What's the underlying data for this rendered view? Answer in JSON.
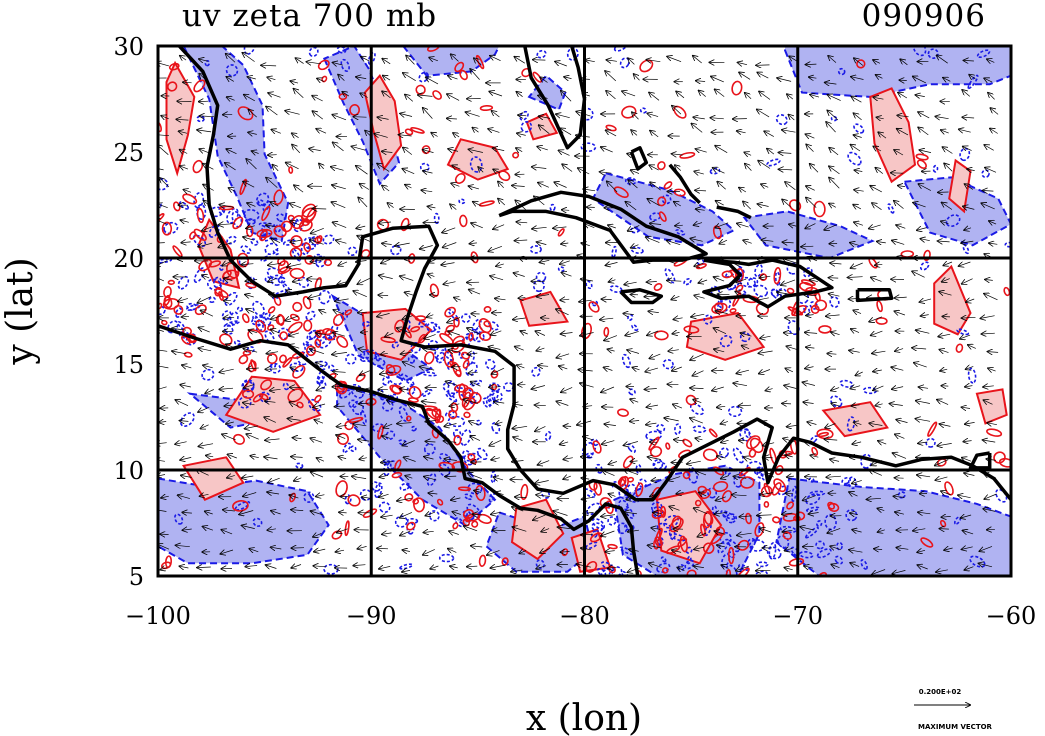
{
  "chart_data": {
    "type": "contour",
    "title": "uv zeta 700 mb",
    "date_label": "090906",
    "xlabel": "x (lon)",
    "ylabel": "y (lat)",
    "xlim": [
      -100,
      -60
    ],
    "ylim": [
      5,
      30
    ],
    "x_ticks": [
      {
        "value": -100,
        "label": "−100"
      },
      {
        "value": -90,
        "label": "−90"
      },
      {
        "value": -80,
        "label": "−80"
      },
      {
        "value": -70,
        "label": "−70"
      },
      {
        "value": -60,
        "label": "−60"
      }
    ],
    "y_ticks": [
      {
        "value": 5,
        "label": "5"
      },
      {
        "value": 10,
        "label": "10"
      },
      {
        "value": 15,
        "label": "15"
      },
      {
        "value": 20,
        "label": "20"
      },
      {
        "value": 25,
        "label": "25"
      },
      {
        "value": 30,
        "label": "30"
      }
    ],
    "grid_lon": [
      -90,
      -80,
      -70
    ],
    "grid_lat": [
      10,
      20
    ],
    "grid": true,
    "colors": {
      "positive_fill": "#f7c6c6",
      "positive_line": "#e8141b",
      "negative_fill": "#b0b3f2",
      "negative_line": "#1a1ae6",
      "coast": "#000000",
      "vector": "#000000"
    },
    "vector_legend": {
      "magnitude_label": "0.200E+02",
      "caption": "MAXIMUM VECTOR"
    },
    "coastlines": [
      [
        [
          -99,
          30
        ],
        [
          -97.9,
          28.8
        ],
        [
          -97.2,
          27.2
        ],
        [
          -97.4,
          25.8
        ],
        [
          -97.7,
          24.3
        ],
        [
          -97.6,
          22.5
        ],
        [
          -97.2,
          21.2
        ],
        [
          -96.6,
          19.9
        ],
        [
          -95.6,
          18.9
        ],
        [
          -94.5,
          18.2
        ],
        [
          -93.2,
          18.4
        ],
        [
          -92.2,
          18.6
        ],
        [
          -91.2,
          18.7
        ],
        [
          -90.6,
          19.7
        ],
        [
          -90.4,
          21.0
        ],
        [
          -89.0,
          21.4
        ],
        [
          -87.3,
          21.5
        ],
        [
          -86.9,
          20.6
        ],
        [
          -87.5,
          19.5
        ],
        [
          -87.9,
          18.4
        ],
        [
          -88.3,
          17.2
        ],
        [
          -88.6,
          16.1
        ],
        [
          -87.5,
          15.8
        ],
        [
          -85.8,
          15.9
        ],
        [
          -84.2,
          15.6
        ],
        [
          -83.3,
          14.9
        ],
        [
          -83.3,
          13.1
        ],
        [
          -83.6,
          11.9
        ],
        [
          -83.6,
          11.0
        ],
        [
          -83.0,
          10.0
        ],
        [
          -82.2,
          9.1
        ],
        [
          -81.0,
          8.9
        ],
        [
          -79.6,
          9.5
        ],
        [
          -78.6,
          9.3
        ],
        [
          -77.6,
          8.6
        ],
        [
          -76.8,
          8.6
        ],
        [
          -76.2,
          9.4
        ],
        [
          -75.4,
          10.6
        ],
        [
          -74.2,
          11.2
        ],
        [
          -73.0,
          11.8
        ],
        [
          -71.9,
          12.4
        ],
        [
          -71.2,
          12.0
        ],
        [
          -71.6,
          10.6
        ],
        [
          -71.4,
          9.4
        ],
        [
          -70.9,
          10.6
        ],
        [
          -70.2,
          11.5
        ],
        [
          -69.4,
          11.3
        ],
        [
          -68.4,
          10.8
        ],
        [
          -67.0,
          10.6
        ],
        [
          -65.4,
          10.2
        ],
        [
          -64.2,
          10.5
        ],
        [
          -62.8,
          10.6
        ],
        [
          -61.8,
          10.2
        ],
        [
          -60.8,
          9.6
        ],
        [
          -60,
          8.6
        ]
      ],
      [
        [
          -100,
          16.8
        ],
        [
          -98.2,
          16.2
        ],
        [
          -96.6,
          15.7
        ],
        [
          -95.2,
          16.1
        ],
        [
          -93.9,
          15.9
        ],
        [
          -92.5,
          14.8
        ],
        [
          -91.4,
          14.0
        ],
        [
          -90.0,
          13.7
        ],
        [
          -88.8,
          13.3
        ],
        [
          -87.6,
          13.0
        ],
        [
          -87.3,
          12.2
        ],
        [
          -86.4,
          11.4
        ],
        [
          -85.8,
          10.6
        ],
        [
          -85.6,
          9.6
        ],
        [
          -84.8,
          9.4
        ],
        [
          -84.0,
          8.8
        ],
        [
          -83.0,
          8.2
        ],
        [
          -82.2,
          8.1
        ],
        [
          -81.1,
          7.7
        ],
        [
          -80.5,
          7.2
        ],
        [
          -79.8,
          7.6
        ],
        [
          -79.0,
          8.4
        ],
        [
          -78.3,
          8.2
        ],
        [
          -77.8,
          7.3
        ],
        [
          -77.7,
          6.2
        ],
        [
          -77.5,
          5
        ]
      ],
      [
        [
          -84.0,
          22.0
        ],
        [
          -82.5,
          22.7
        ],
        [
          -81.1,
          23.1
        ],
        [
          -79.8,
          22.9
        ],
        [
          -78.3,
          22.3
        ],
        [
          -77.1,
          21.5
        ],
        [
          -75.6,
          21.0
        ],
        [
          -74.3,
          20.2
        ],
        [
          -75.4,
          19.9
        ],
        [
          -76.8,
          19.9
        ],
        [
          -77.7,
          19.8
        ],
        [
          -78.8,
          21.3
        ],
        [
          -80.4,
          21.9
        ],
        [
          -81.8,
          22.2
        ],
        [
          -83.4,
          22.2
        ],
        [
          -84.0,
          22.0
        ]
      ],
      [
        [
          -74.4,
          19.9
        ],
        [
          -73.0,
          19.8
        ],
        [
          -72.3,
          19.7
        ],
        [
          -71.2,
          19.9
        ],
        [
          -69.9,
          19.6
        ],
        [
          -69.0,
          19.0
        ],
        [
          -68.4,
          18.6
        ],
        [
          -69.2,
          18.4
        ],
        [
          -70.6,
          18.2
        ],
        [
          -71.4,
          17.7
        ],
        [
          -72.3,
          18.2
        ],
        [
          -73.6,
          18.1
        ],
        [
          -74.4,
          18.4
        ],
        [
          -73.2,
          18.7
        ],
        [
          -72.7,
          19.2
        ],
        [
          -73.2,
          19.7
        ],
        [
          -74.4,
          19.9
        ]
      ],
      [
        [
          -78.3,
          18.4
        ],
        [
          -77.4,
          18.5
        ],
        [
          -76.4,
          18.2
        ],
        [
          -76.8,
          17.9
        ],
        [
          -77.8,
          17.9
        ],
        [
          -78.3,
          18.4
        ]
      ],
      [
        [
          -67.2,
          18.5
        ],
        [
          -65.7,
          18.5
        ],
        [
          -65.6,
          18.1
        ],
        [
          -67.2,
          18.0
        ],
        [
          -67.2,
          18.5
        ]
      ],
      [
        [
          -82.8,
          30
        ],
        [
          -82.5,
          28.5
        ],
        [
          -81.7,
          27.2
        ],
        [
          -80.8,
          25.2
        ],
        [
          -80.2,
          25.8
        ],
        [
          -80.0,
          27.5
        ],
        [
          -80.3,
          29
        ],
        [
          -80.6,
          30
        ]
      ],
      [
        [
          -77.8,
          25.0
        ],
        [
          -77.4,
          25.2
        ],
        [
          -77.1,
          24.5
        ],
        [
          -77.5,
          24.2
        ],
        [
          -77.8,
          25.0
        ]
      ],
      [
        [
          -76.0,
          24.4
        ],
        [
          -75.5,
          23.8
        ],
        [
          -75.0,
          23.0
        ],
        [
          -74.6,
          22.6
        ]
      ],
      [
        [
          -73.8,
          22.4
        ],
        [
          -72.8,
          22.2
        ],
        [
          -72.2,
          21.9
        ]
      ],
      [
        [
          -61.0,
          10.8
        ],
        [
          -61.6,
          10.7
        ],
        [
          -61.9,
          10.1
        ],
        [
          -61.0,
          10.1
        ],
        [
          -61.0,
          10.8
        ]
      ]
    ]
  }
}
